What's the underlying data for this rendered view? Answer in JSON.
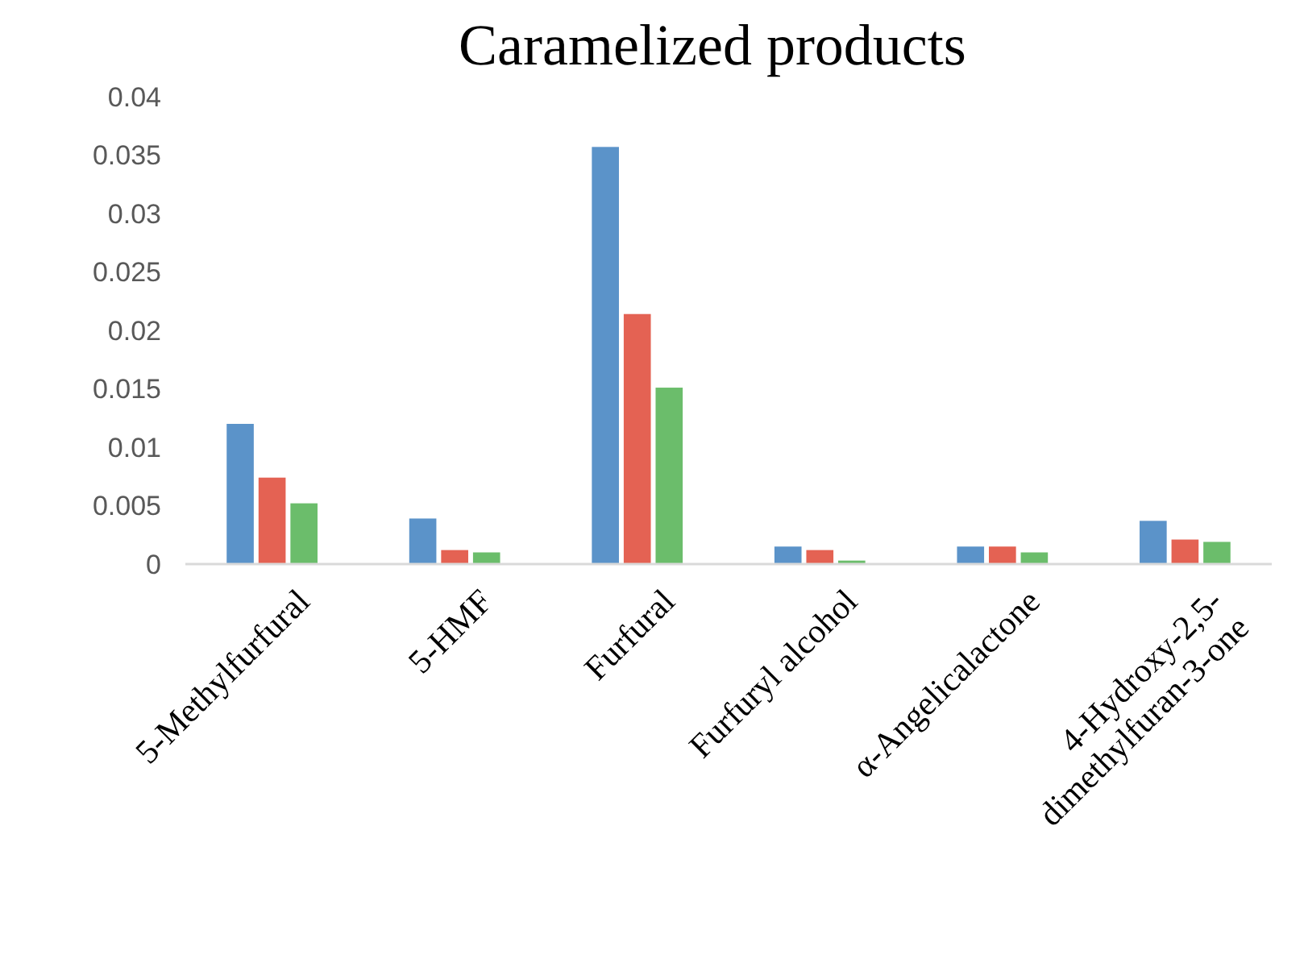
{
  "chart_data": {
    "type": "bar",
    "title": "Caramelized products",
    "categories": [
      "5-Methylfurfural",
      "5-HMF",
      "Furfural",
      "Furfuryl alcohol",
      "α-Angelicalactone",
      "4-Hydroxy-2,5-dimethylfuran-3-one"
    ],
    "series": [
      {
        "color": "#5b93c9",
        "values": [
          0.012,
          0.0039,
          0.0357,
          0.0015,
          0.0015,
          0.0037
        ]
      },
      {
        "color": "#e46253",
        "values": [
          0.0074,
          0.0012,
          0.0214,
          0.0012,
          0.0015,
          0.0021
        ]
      },
      {
        "color": "#6bbd6b",
        "values": [
          0.0052,
          0.001,
          0.0151,
          0.0003,
          0.001,
          0.0019
        ]
      }
    ],
    "ylim": [
      0,
      0.04
    ],
    "yticks": [
      0,
      0.005,
      0.01,
      0.015,
      0.02,
      0.025,
      0.03,
      0.035,
      0.04
    ],
    "grid": false
  }
}
